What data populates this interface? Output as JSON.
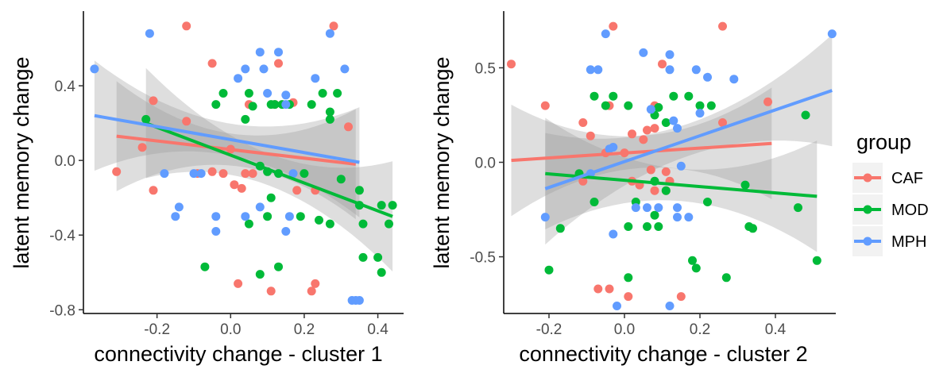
{
  "chart_data": [
    {
      "type": "scatter",
      "xlabel": "connectivity change - cluster 1",
      "ylabel": "latent memory change",
      "xlim": [
        -0.4,
        0.47
      ],
      "ylim": [
        -0.82,
        0.8
      ],
      "xticks": [
        -0.2,
        0.0,
        0.2,
        0.4
      ],
      "xtick_labels": [
        "-0.2",
        "0.0",
        "0.2",
        "0.4"
      ],
      "yticks": [
        -0.8,
        -0.4,
        0.0,
        0.4
      ],
      "ytick_labels": [
        "-0.8",
        "-0.4",
        "0.0",
        "0.4"
      ],
      "grid": false,
      "series": [
        {
          "name": "CAF",
          "color": "#F8766D",
          "points": [
            [
              -0.12,
              0.72
            ],
            [
              0.28,
              0.72
            ],
            [
              -0.05,
              0.52
            ],
            [
              0.13,
              0.52
            ],
            [
              -0.21,
              0.32
            ],
            [
              -0.12,
              0.21
            ],
            [
              0.05,
              0.3
            ],
            [
              0.12,
              0.3
            ],
            [
              0.17,
              0.31
            ],
            [
              0.32,
              0.18
            ],
            [
              -0.24,
              0.07
            ],
            [
              0.0,
              0.06
            ],
            [
              -0.09,
              -0.07
            ],
            [
              -0.05,
              -0.06
            ],
            [
              -0.02,
              -0.07
            ],
            [
              0.04,
              -0.07
            ],
            [
              0.06,
              -0.07
            ],
            [
              0.01,
              -0.13
            ],
            [
              -0.31,
              -0.06
            ],
            [
              0.03,
              -0.15
            ],
            [
              -0.21,
              -0.16
            ],
            [
              0.18,
              -0.16
            ],
            [
              0.23,
              -0.16
            ],
            [
              0.02,
              -0.66
            ],
            [
              0.11,
              -0.7
            ],
            [
              0.22,
              -0.7
            ],
            [
              0.23,
              -0.66
            ]
          ],
          "fit": {
            "x": [
              -0.31,
              0.34
            ],
            "y": [
              0.13,
              -0.02
            ]
          }
        },
        {
          "name": "MOD",
          "color": "#00BA38",
          "points": [
            [
              -0.04,
              0.3
            ],
            [
              -0.02,
              0.36
            ],
            [
              0.05,
              0.36
            ],
            [
              0.04,
              0.22
            ],
            [
              0.06,
              0.29
            ],
            [
              0.11,
              0.3
            ],
            [
              0.12,
              0.3
            ],
            [
              0.14,
              0.3
            ],
            [
              0.16,
              0.3
            ],
            [
              0.22,
              0.3
            ],
            [
              0.25,
              0.36
            ],
            [
              0.29,
              0.36
            ],
            [
              0.27,
              0.26
            ],
            [
              0.27,
              0.22
            ],
            [
              -0.23,
              0.22
            ],
            [
              0.08,
              -0.03
            ],
            [
              0.1,
              -0.06
            ],
            [
              0.13,
              -0.07
            ],
            [
              0.2,
              -0.07
            ],
            [
              0.3,
              -0.1
            ],
            [
              0.35,
              -0.16
            ],
            [
              0.35,
              -0.24
            ],
            [
              0.41,
              -0.24
            ],
            [
              0.44,
              -0.24
            ],
            [
              0.11,
              -0.2
            ],
            [
              0.1,
              -0.3
            ],
            [
              0.19,
              -0.3
            ],
            [
              0.24,
              -0.32
            ],
            [
              0.27,
              -0.34
            ],
            [
              0.05,
              -0.34
            ],
            [
              0.36,
              -0.34
            ],
            [
              0.43,
              -0.34
            ],
            [
              -0.07,
              -0.57
            ],
            [
              0.13,
              -0.57
            ],
            [
              0.08,
              -0.61
            ],
            [
              0.36,
              -0.52
            ],
            [
              0.4,
              -0.52
            ],
            [
              0.41,
              -0.6
            ]
          ],
          "fit": {
            "x": [
              -0.23,
              0.44
            ],
            "y": [
              0.2,
              -0.3
            ]
          }
        },
        {
          "name": "MPH",
          "color": "#619CFF",
          "points": [
            [
              -0.37,
              0.49
            ],
            [
              -0.22,
              0.68
            ],
            [
              0.08,
              0.58
            ],
            [
              0.13,
              0.58
            ],
            [
              0.27,
              0.68
            ],
            [
              0.02,
              0.44
            ],
            [
              0.04,
              0.49
            ],
            [
              0.09,
              0.49
            ],
            [
              0.23,
              0.44
            ],
            [
              0.31,
              0.49
            ],
            [
              0.1,
              0.36
            ],
            [
              0.15,
              0.35
            ],
            [
              0.15,
              0.3
            ],
            [
              -0.18,
              -0.07
            ],
            [
              -0.1,
              -0.07
            ],
            [
              -0.08,
              -0.07
            ],
            [
              0.17,
              -0.07
            ],
            [
              -0.14,
              -0.25
            ],
            [
              -0.15,
              -0.3
            ],
            [
              -0.04,
              -0.3
            ],
            [
              0.08,
              -0.25
            ],
            [
              0.04,
              -0.3
            ],
            [
              0.16,
              -0.3
            ],
            [
              -0.04,
              -0.38
            ],
            [
              0.15,
              -0.38
            ],
            [
              0.33,
              -0.75
            ],
            [
              0.34,
              -0.75
            ],
            [
              0.35,
              -0.75
            ]
          ],
          "fit": {
            "x": [
              -0.37,
              0.35
            ],
            "y": [
              0.24,
              -0.01
            ]
          }
        }
      ]
    },
    {
      "type": "scatter",
      "xlabel": "connectivity change - cluster 2",
      "ylabel": "latent memory change",
      "xlim": [
        -0.32,
        0.56
      ],
      "ylim": [
        -0.8,
        0.8
      ],
      "xticks": [
        -0.2,
        0.0,
        0.2,
        0.4
      ],
      "xtick_labels": [
        "-0.2",
        "0.0",
        "0.2",
        "0.4"
      ],
      "yticks": [
        -0.5,
        0.0,
        0.5
      ],
      "ytick_labels": [
        "-0.5",
        "0.0",
        "0.5"
      ],
      "grid": false,
      "series": [
        {
          "name": "CAF",
          "color": "#F8766D",
          "points": [
            [
              -0.3,
              0.52
            ],
            [
              -0.21,
              0.3
            ],
            [
              -0.03,
              0.72
            ],
            [
              0.26,
              0.72
            ],
            [
              0.1,
              0.52
            ],
            [
              -0.04,
              0.3
            ],
            [
              0.08,
              0.3
            ],
            [
              -0.11,
              0.21
            ],
            [
              0.06,
              0.17
            ],
            [
              -0.09,
              0.14
            ],
            [
              0.02,
              0.15
            ],
            [
              0.08,
              0.18
            ],
            [
              0.05,
              0.12
            ],
            [
              0.26,
              0.21
            ],
            [
              0.38,
              0.32
            ],
            [
              -0.05,
              0.05
            ],
            [
              0.0,
              0.05
            ],
            [
              0.07,
              -0.04
            ],
            [
              0.11,
              -0.05
            ],
            [
              -0.11,
              -0.1
            ],
            [
              0.02,
              -0.1
            ],
            [
              0.04,
              -0.12
            ],
            [
              0.11,
              -0.15
            ],
            [
              0.08,
              -0.15
            ],
            [
              0.12,
              -0.1
            ],
            [
              -0.07,
              -0.67
            ],
            [
              -0.04,
              -0.67
            ],
            [
              0.01,
              -0.71
            ],
            [
              0.15,
              -0.71
            ]
          ],
          "fit": {
            "x": [
              -0.3,
              0.39
            ],
            "y": [
              0.01,
              0.1
            ]
          }
        },
        {
          "name": "MOD",
          "color": "#00BA38",
          "points": [
            [
              -0.08,
              0.35
            ],
            [
              -0.03,
              0.35
            ],
            [
              0.13,
              0.35
            ],
            [
              0.17,
              0.35
            ],
            [
              -0.05,
              0.3
            ],
            [
              0.01,
              0.3
            ],
            [
              0.09,
              0.29
            ],
            [
              0.2,
              0.3
            ],
            [
              0.23,
              0.3
            ],
            [
              0.08,
              0.25
            ],
            [
              0.11,
              0.21
            ],
            [
              0.48,
              0.25
            ],
            [
              -0.12,
              -0.06
            ],
            [
              0.08,
              -0.1
            ],
            [
              0.11,
              -0.15
            ],
            [
              0.32,
              -0.12
            ],
            [
              -0.08,
              -0.21
            ],
            [
              0.03,
              -0.21
            ],
            [
              0.08,
              -0.28
            ],
            [
              0.22,
              -0.21
            ],
            [
              0.46,
              -0.24
            ],
            [
              0.33,
              -0.34
            ],
            [
              0.34,
              -0.35
            ],
            [
              0.01,
              -0.34
            ],
            [
              0.06,
              -0.34
            ],
            [
              0.09,
              -0.34
            ],
            [
              -0.17,
              -0.35
            ],
            [
              -0.2,
              -0.57
            ],
            [
              0.01,
              -0.61
            ],
            [
              0.18,
              -0.52
            ],
            [
              0.19,
              -0.56
            ],
            [
              0.27,
              -0.61
            ],
            [
              0.51,
              -0.52
            ]
          ],
          "fit": {
            "x": [
              -0.21,
              0.51
            ],
            "y": [
              -0.06,
              -0.18
            ]
          }
        },
        {
          "name": "MPH",
          "color": "#619CFF",
          "points": [
            [
              -0.05,
              0.68
            ],
            [
              0.05,
              0.58
            ],
            [
              0.12,
              0.57
            ],
            [
              0.55,
              0.68
            ],
            [
              -0.09,
              0.49
            ],
            [
              -0.07,
              0.49
            ],
            [
              0.12,
              0.49
            ],
            [
              0.19,
              0.49
            ],
            [
              0.22,
              0.45
            ],
            [
              0.29,
              0.44
            ],
            [
              0.07,
              0.28
            ],
            [
              0.13,
              0.22
            ],
            [
              0.14,
              0.18
            ],
            [
              0.2,
              0.26
            ],
            [
              -0.09,
              -0.06
            ],
            [
              -0.03,
              0.08
            ],
            [
              -0.04,
              0.07
            ],
            [
              -0.21,
              -0.29
            ],
            [
              0.03,
              -0.24
            ],
            [
              0.06,
              -0.24
            ],
            [
              0.09,
              -0.24
            ],
            [
              0.14,
              -0.24
            ],
            [
              0.14,
              -0.29
            ],
            [
              0.17,
              -0.29
            ],
            [
              -0.03,
              -0.38
            ],
            [
              -0.02,
              -0.76
            ],
            [
              0.12,
              -0.76
            ],
            [
              0.15,
              -0.02
            ]
          ],
          "fit": {
            "x": [
              -0.21,
              0.55
            ],
            "y": [
              -0.14,
              0.38
            ]
          }
        }
      ]
    }
  ],
  "legend": {
    "title": "group",
    "placement": "right",
    "items": [
      {
        "label": "CAF",
        "color": "#F8766D"
      },
      {
        "label": "MOD",
        "color": "#00BA38"
      },
      {
        "label": "MPH",
        "color": "#619CFF"
      }
    ]
  }
}
